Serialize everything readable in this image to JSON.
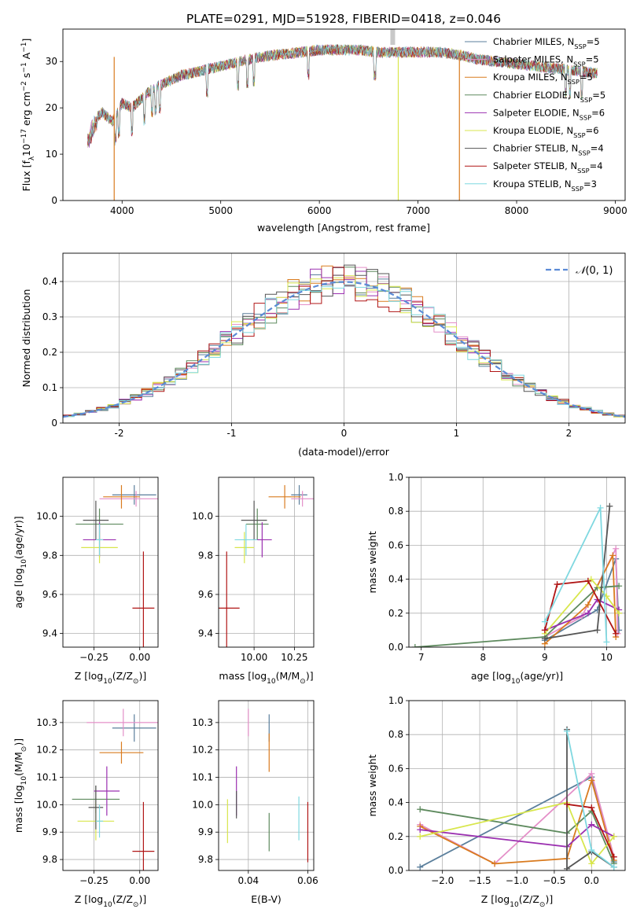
{
  "chart_data": [
    {
      "type": "line",
      "title": "PLATE=0291, MJD=51928, FIBERID=0418, z=0.046",
      "xlabel": "wavelength [Angstrom, rest frame]",
      "ylabel_parts": [
        "Flux [f",
        "λ",
        "10",
        "−17",
        " erg cm",
        "−2",
        " s",
        "−1",
        " A",
        "−1",
        "]"
      ],
      "xlim": [
        3400,
        9100
      ],
      "ylim": [
        0,
        37
      ],
      "xticks": [
        4000,
        5000,
        6000,
        7000,
        8000,
        9000
      ],
      "yticks": [
        0,
        10,
        20,
        30
      ],
      "spectrum_envelope": {
        "x": [
          3650,
          3700,
          3800,
          3900,
          4000,
          4100,
          4200,
          4300,
          4400,
          4600,
          4800,
          5000,
          5200,
          5400,
          5600,
          5800,
          6000,
          6200,
          6400,
          6600,
          6800,
          7000,
          7200,
          7400,
          7600,
          7800,
          8000,
          8200,
          8400,
          8600,
          8800
        ],
        "y": [
          14,
          17,
          19,
          17,
          21,
          20,
          22,
          24,
          25,
          27,
          28,
          29,
          30,
          31,
          31.5,
          32,
          32.5,
          32.5,
          32.5,
          32,
          32,
          32,
          32,
          31.5,
          30.5,
          30,
          29.5,
          29,
          28.5,
          28,
          27.5
        ]
      },
      "series": [
        {
          "name": "Chabrier MILES, N_SSP=5",
          "label_main": "Chabrier MILES, N",
          "label_sub": "SSP",
          "label_tail": "=5",
          "color": "#5b7f9c"
        },
        {
          "name": "Salpeter MILES, N_SSP=5",
          "label_main": "Salpeter MILES, N",
          "label_sub": "SSP",
          "label_tail": "=5",
          "color": "#e48fc8"
        },
        {
          "name": "Kroupa MILES, N_SSP=5",
          "label_main": "Kroupa MILES, N",
          "label_sub": "SSP",
          "label_tail": "=5",
          "color": "#d97b1f"
        },
        {
          "name": "Chabrier ELODIE, N_SSP=5",
          "label_main": "Chabrier ELODIE, N",
          "label_sub": "SSP",
          "label_tail": "=5",
          "color": "#5e8a5e"
        },
        {
          "name": "Salpeter ELODIE, N_SSP=6",
          "label_main": "Salpeter ELODIE, N",
          "label_sub": "SSP",
          "label_tail": "=6",
          "color": "#9b30b0"
        },
        {
          "name": "Kroupa ELODIE, N_SSP=6",
          "label_main": "Kroupa ELODIE, N",
          "label_sub": "SSP",
          "label_tail": "=6",
          "color": "#d8e64c"
        },
        {
          "name": "Chabrier STELIB, N_SSP=4",
          "label_main": "Chabrier STELIB, N",
          "label_sub": "SSP",
          "label_tail": "=4",
          "color": "#555555"
        },
        {
          "name": "Salpeter STELIB, N_SSP=4",
          "label_main": "Salpeter STELIB, N",
          "label_sub": "SSP",
          "label_tail": "=4",
          "color": "#b01515"
        },
        {
          "name": "Kroupa STELIB, N_SSP=3",
          "label_main": "Kroupa STELIB, N",
          "label_sub": "SSP",
          "label_tail": "=3",
          "color": "#7fd8e0"
        }
      ]
    },
    {
      "type": "histogram",
      "xlabel": "(data-model)/error",
      "ylabel": "Normed distribution",
      "xlim": [
        -2.5,
        2.5
      ],
      "ylim": [
        0,
        0.48
      ],
      "xticks": [
        -2,
        -1,
        0,
        1,
        2
      ],
      "yticks": [
        0.0,
        0.1,
        0.2,
        0.3,
        0.4
      ],
      "legend": "top-right",
      "reference_curve": {
        "name": "N(0,1)",
        "label_script": "𝒩",
        "label_rest": "(0, 1)",
        "color": "#5b8bd6"
      },
      "bin_width": 0.1,
      "bin_start": -2.5
    },
    {
      "type": "scatter",
      "xlabel_main": "Z [log",
      "xlabel_sub": "10",
      "xlabel_tail": "(Z/Z",
      "xlabel_sun": "⊙",
      "xlabel_end": ")]",
      "ylabel_main": "age  [log",
      "ylabel_sub": "10",
      "ylabel_tail": "(age/yr)]",
      "xlim": [
        -0.42,
        0.1
      ],
      "ylim": [
        9.33,
        10.2
      ],
      "xticks": [
        -0.25,
        0.0
      ],
      "xticklabels": [
        "−0.25",
        "0.00"
      ],
      "yticks": [
        9.4,
        9.6,
        9.8,
        10.0
      ],
      "yticklabels": [
        "9.4",
        "9.6",
        "9.8",
        "10.0"
      ],
      "points": [
        {
          "x": -0.03,
          "y": 10.11,
          "xerr": 0.12,
          "yerr": 0.05
        },
        {
          "x": -0.02,
          "y": 10.09,
          "xerr": 0.2,
          "yerr": 0.04
        },
        {
          "x": -0.1,
          "y": 10.1,
          "xerr": 0.1,
          "yerr": 0.06
        },
        {
          "x": -0.22,
          "y": 9.96,
          "xerr": 0.13,
          "yerr": 0.08
        },
        {
          "x": -0.22,
          "y": 9.88,
          "xerr": 0.09,
          "yerr": 0.09
        },
        {
          "x": -0.22,
          "y": 9.84,
          "xerr": 0.1,
          "yerr": 0.08
        },
        {
          "x": -0.24,
          "y": 9.98,
          "xerr": 0.07,
          "yerr": 0.1
        },
        {
          "x": 0.02,
          "y": 9.53,
          "xerr": 0.06,
          "yerr": 0.29
        },
        {
          "x": -0.22,
          "y": 9.88,
          "xerr": 0.02,
          "yerr": 0.08
        }
      ]
    },
    {
      "type": "scatter",
      "xlabel_main": "mass [log",
      "xlabel_sub": "10",
      "xlabel_tail": "(M/M",
      "xlabel_sun": "⊙",
      "xlabel_end": ")]",
      "xlim": [
        9.78,
        10.37
      ],
      "ylim": [
        9.33,
        10.2
      ],
      "xticks": [
        10.0,
        10.25
      ],
      "xticklabels": [
        "10.00",
        "10.25"
      ],
      "yticks": [
        9.4,
        9.6,
        9.8,
        10.0
      ],
      "yticklabels": [
        "9.4",
        "9.6",
        "9.8",
        "10.0"
      ],
      "points": [
        {
          "x": 10.28,
          "y": 10.11,
          "xerr": 0.05,
          "yerr": 0.05
        },
        {
          "x": 10.3,
          "y": 10.09,
          "xerr": 0.07,
          "yerr": 0.04
        },
        {
          "x": 10.19,
          "y": 10.1,
          "xerr": 0.1,
          "yerr": 0.06
        },
        {
          "x": 10.02,
          "y": 9.96,
          "xerr": 0.07,
          "yerr": 0.08
        },
        {
          "x": 10.05,
          "y": 9.88,
          "xerr": 0.06,
          "yerr": 0.09
        },
        {
          "x": 9.94,
          "y": 9.84,
          "xerr": 0.06,
          "yerr": 0.08
        },
        {
          "x": 10.0,
          "y": 9.98,
          "xerr": 0.08,
          "yerr": 0.1
        },
        {
          "x": 9.83,
          "y": 9.53,
          "xerr": 0.08,
          "yerr": 0.29
        },
        {
          "x": 9.95,
          "y": 9.88,
          "xerr": 0.07,
          "yerr": 0.08
        }
      ]
    },
    {
      "type": "line",
      "xlabel_main": "age  [log",
      "xlabel_sub": "10",
      "xlabel_tail": "(age/yr)]",
      "ylabel": "mass weight",
      "xlim": [
        6.8,
        10.3
      ],
      "ylim": [
        0,
        1.0
      ],
      "xticks": [
        7,
        8,
        9,
        10
      ],
      "xticklabels": [
        "7",
        "8",
        "9",
        "10"
      ],
      "yticks": [
        0.0,
        0.2,
        0.4,
        0.6,
        0.8,
        1.0
      ],
      "yticklabels": [
        "0.0",
        "0.2",
        "0.4",
        "0.6",
        "0.8",
        "1.0"
      ],
      "series": [
        {
          "x": [
            9.0,
            9.85,
            10.15,
            10.2
          ],
          "y": [
            0.04,
            0.22,
            0.52,
            0.1
          ]
        },
        {
          "x": [
            9.0,
            9.6,
            10.15,
            10.18
          ],
          "y": [
            0.06,
            0.18,
            0.58,
            0.08
          ]
        },
        {
          "x": [
            9.0,
            9.7,
            10.1,
            10.15
          ],
          "y": [
            0.02,
            0.25,
            0.54,
            0.06
          ]
        },
        {
          "x": [
            6.9,
            9.0,
            9.85,
            10.2
          ],
          "y": [
            0.0,
            0.06,
            0.35,
            0.36
          ]
        },
        {
          "x": [
            9.0,
            9.7,
            9.85,
            10.2
          ],
          "y": [
            0.1,
            0.2,
            0.28,
            0.22
          ]
        },
        {
          "x": [
            9.0,
            9.75,
            10.0,
            10.2
          ],
          "y": [
            0.08,
            0.4,
            0.3,
            0.2
          ]
        },
        {
          "x": [
            9.0,
            9.85,
            10.05
          ],
          "y": [
            0.05,
            0.1,
            0.83
          ]
        },
        {
          "x": [
            9.0,
            9.2,
            9.7,
            10.15
          ],
          "y": [
            0.1,
            0.37,
            0.39,
            0.08
          ]
        },
        {
          "x": [
            9.0,
            9.9,
            10.0
          ],
          "y": [
            0.15,
            0.82,
            0.03
          ]
        }
      ]
    },
    {
      "type": "scatter",
      "xlabel_main": "Z [log",
      "xlabel_sub": "10",
      "xlabel_tail": "(Z/Z",
      "xlabel_sun": "⊙",
      "xlabel_end": ")]",
      "ylabel_main": "mass [log",
      "ylabel_sub": "10",
      "ylabel_tail": "(M/M",
      "ylabel_sun": "⊙",
      "ylabel_end": ")]",
      "xlim": [
        -0.42,
        0.1
      ],
      "ylim": [
        9.76,
        10.38
      ],
      "xticks": [
        -0.25,
        0.0
      ],
      "xticklabels": [
        "−0.25",
        "0.00"
      ],
      "yticks": [
        9.8,
        9.9,
        10.0,
        10.1,
        10.2,
        10.3
      ],
      "yticklabels": [
        "9.8",
        "9.9",
        "10.0",
        "10.1",
        "10.2",
        "10.3"
      ],
      "points": [
        {
          "x": -0.03,
          "y": 10.28,
          "xerr": 0.12,
          "yerr": 0.05
        },
        {
          "x": -0.09,
          "y": 10.3,
          "xerr": 0.2,
          "yerr": 0.05
        },
        {
          "x": -0.1,
          "y": 10.19,
          "xerr": 0.12,
          "yerr": 0.04
        },
        {
          "x": -0.24,
          "y": 10.02,
          "xerr": 0.13,
          "yerr": 0.05
        },
        {
          "x": -0.18,
          "y": 10.05,
          "xerr": 0.07,
          "yerr": 0.09
        },
        {
          "x": -0.24,
          "y": 9.94,
          "xerr": 0.1,
          "yerr": 0.07
        },
        {
          "x": -0.24,
          "y": 9.99,
          "xerr": 0.04,
          "yerr": 0.08
        },
        {
          "x": 0.02,
          "y": 9.83,
          "xerr": 0.06,
          "yerr": 0.18
        },
        {
          "x": -0.22,
          "y": 9.94,
          "xerr": 0.02,
          "yerr": 0.06
        }
      ]
    },
    {
      "type": "scatter",
      "xlabel": "E(B-V)",
      "xlim": [
        0.03,
        0.062
      ],
      "ylim": [
        9.76,
        10.38
      ],
      "xticks": [
        0.04,
        0.06
      ],
      "xticklabels": [
        "0.04",
        "0.06"
      ],
      "yticks": [
        9.8,
        9.9,
        10.0,
        10.1,
        10.2,
        10.3
      ],
      "yticklabels": [
        "9.8",
        "9.9",
        "10.0",
        "10.1",
        "10.2",
        "10.3"
      ],
      "points": [
        {
          "x": 0.047,
          "y": 10.28,
          "yerr": 0.05
        },
        {
          "x": 0.04,
          "y": 10.3,
          "yerr": 0.05
        },
        {
          "x": 0.047,
          "y": 10.19,
          "yerr": 0.07
        },
        {
          "x": 0.047,
          "y": 9.9,
          "yerr": 0.07
        },
        {
          "x": 0.036,
          "y": 10.05,
          "yerr": 0.09
        },
        {
          "x": 0.033,
          "y": 9.94,
          "yerr": 0.08
        },
        {
          "x": 0.036,
          "y": 10.0,
          "yerr": 0.05
        },
        {
          "x": 0.06,
          "y": 9.9,
          "yerr": 0.11
        },
        {
          "x": 0.057,
          "y": 9.95,
          "yerr": 0.08
        }
      ]
    },
    {
      "type": "line",
      "xlabel_main": "Z [log",
      "xlabel_sub": "10",
      "xlabel_tail": "(Z/Z",
      "xlabel_sun": "⊙",
      "xlabel_end": ")]",
      "ylabel": "mass weight",
      "xlim": [
        -2.45,
        0.45
      ],
      "ylim": [
        0,
        1.0
      ],
      "xticks": [
        -2.0,
        -1.5,
        -1.0,
        -0.5,
        0.0
      ],
      "xticklabels": [
        "−2.0",
        "−1.5",
        "−1.0",
        "−0.5",
        "0.0"
      ],
      "yticks": [
        0.0,
        0.2,
        0.4,
        0.6,
        0.8,
        1.0
      ],
      "yticklabels": [
        "0.0",
        "0.2",
        "0.4",
        "0.6",
        "0.8",
        "1.0"
      ],
      "series": [
        {
          "x": [
            -2.3,
            0.0,
            0.3
          ],
          "y": [
            0.02,
            0.55,
            0.05
          ]
        },
        {
          "x": [
            -2.3,
            -1.3,
            0.0,
            0.3
          ],
          "y": [
            0.27,
            0.04,
            0.57,
            0.08
          ]
        },
        {
          "x": [
            -2.3,
            -1.3,
            -0.33,
            0.0,
            0.3
          ],
          "y": [
            0.26,
            0.04,
            0.07,
            0.53,
            0.06
          ]
        },
        {
          "x": [
            -2.3,
            -0.33,
            0.0,
            0.3
          ],
          "y": [
            0.36,
            0.22,
            0.35,
            0.04
          ]
        },
        {
          "x": [
            -2.3,
            -0.33,
            0.0,
            0.3
          ],
          "y": [
            0.24,
            0.14,
            0.27,
            0.2
          ]
        },
        {
          "x": [
            -2.3,
            -0.33,
            0.0,
            0.3
          ],
          "y": [
            0.2,
            0.4,
            0.04,
            0.2
          ]
        },
        {
          "x": [
            -0.33,
            -0.33,
            0.0,
            0.3
          ],
          "y": [
            0.83,
            0.01,
            0.11,
            0.02
          ]
        },
        {
          "x": [
            -0.33,
            0.0,
            0.3
          ],
          "y": [
            0.39,
            0.37,
            0.08
          ]
        },
        {
          "x": [
            -0.33,
            0.0,
            0.3
          ],
          "y": [
            0.82,
            0.12,
            0.02
          ]
        }
      ]
    }
  ]
}
